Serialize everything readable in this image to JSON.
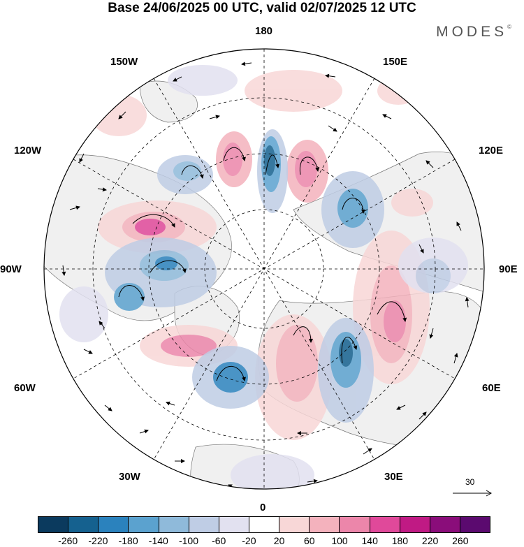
{
  "title": "Base 24/06/2025 00 UTC, valid 02/07/2025 12 UTC",
  "brand": "MODES",
  "brand_mark": "©",
  "longitude_labels": {
    "n180": "180",
    "w150": "150W",
    "e150": "150E",
    "w120": "120W",
    "e120": "120E",
    "w90": "90W",
    "e90": "90E",
    "w60": "60W",
    "e60": "60E",
    "w30": "30W",
    "e30": "30E",
    "s0": "0"
  },
  "reference_vector": "30",
  "legend": {
    "ticks": [
      "-260",
      "-220",
      "-180",
      "-140",
      "-100",
      "-60",
      "-20",
      "20",
      "60",
      "100",
      "140",
      "180",
      "220",
      "260"
    ],
    "colors": [
      "#0b3a5e",
      "#15618f",
      "#2b82bd",
      "#5ba2cf",
      "#8fbada",
      "#bfcde5",
      "#e2e1f0",
      "#ffffff",
      "#f8d7d7",
      "#f4b2bd",
      "#ec86aa",
      "#e0499a",
      "#c01a84",
      "#8a0d7a",
      "#5b0a6f"
    ]
  },
  "colors": {
    "ocean": "#ffffff",
    "land": "#f0f0f0",
    "grid": "#000000"
  }
}
